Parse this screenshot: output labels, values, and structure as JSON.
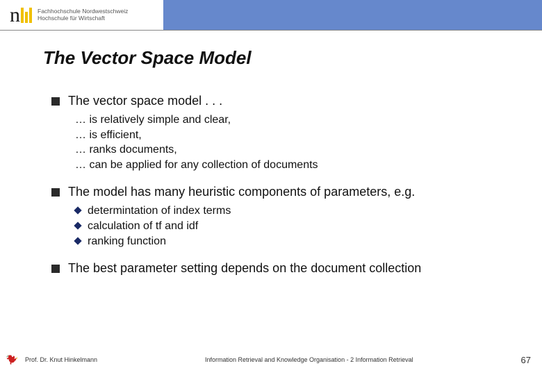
{
  "header": {
    "logo_line1": "Fachhochschule Nordwestschweiz",
    "logo_line2": "Hochschule für Wirtschaft",
    "bar_color": "#6688cc"
  },
  "title": "The Vector Space Model",
  "bullets": [
    {
      "text": "The vector space model  . . .",
      "sub_type": "ellipsis",
      "items": [
        "… is relatively simple and clear,",
        "… is efficient,",
        "… ranks documents,",
        "… can be applied for any collection of documents"
      ]
    },
    {
      "text": "The model has many heuristic components of parameters, e.g.",
      "sub_type": "diamond",
      "items": [
        "determintation of index terms",
        "calculation of tf and idf",
        "ranking function"
      ]
    },
    {
      "text": "The best parameter setting depends on the document collection",
      "sub_type": "none",
      "items": []
    }
  ],
  "footer": {
    "author": "Prof. Dr. Knut Hinkelmann",
    "course": "Information Retrieval and Knowledge Organisation - 2 Information Retrieval",
    "page": "67",
    "rooster_colors": {
      "body": "#cc2020",
      "tail": "#1e5a1e",
      "beak": "#e6a800"
    }
  },
  "colors": {
    "square_bullet": "#2a2a2a",
    "diamond_bullet": "#1a2a66",
    "text": "#111111",
    "background": "#ffffff"
  }
}
